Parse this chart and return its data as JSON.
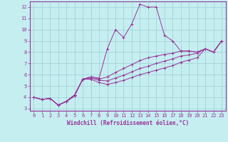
{
  "xlabel": "Windchill (Refroidissement éolien,°C)",
  "bg_color": "#c5eef0",
  "grid_color": "#9dcdd4",
  "line_color": "#993399",
  "xlim": [
    -0.5,
    23.5
  ],
  "ylim": [
    2.8,
    12.5
  ],
  "xticks": [
    0,
    1,
    2,
    3,
    4,
    5,
    6,
    7,
    8,
    9,
    10,
    11,
    12,
    13,
    14,
    15,
    16,
    17,
    18,
    19,
    20,
    21,
    22,
    23
  ],
  "yticks": [
    3,
    4,
    5,
    6,
    7,
    8,
    9,
    10,
    11,
    12
  ],
  "series1": [
    [
      0,
      4.0
    ],
    [
      1,
      3.8
    ],
    [
      2,
      3.9
    ],
    [
      3,
      3.3
    ],
    [
      4,
      3.6
    ],
    [
      5,
      4.1
    ],
    [
      6,
      5.6
    ],
    [
      7,
      5.8
    ],
    [
      8,
      5.7
    ],
    [
      9,
      8.3
    ],
    [
      10,
      10.0
    ],
    [
      11,
      9.3
    ],
    [
      12,
      10.5
    ],
    [
      13,
      12.25
    ],
    [
      14,
      12.0
    ],
    [
      15,
      12.0
    ],
    [
      16,
      9.5
    ],
    [
      17,
      9.0
    ],
    [
      18,
      8.1
    ],
    [
      19,
      8.1
    ],
    [
      20,
      8.0
    ],
    [
      21,
      8.3
    ],
    [
      22,
      8.0
    ],
    [
      23,
      9.0
    ]
  ],
  "series2": [
    [
      0,
      4.0
    ],
    [
      1,
      3.8
    ],
    [
      2,
      3.9
    ],
    [
      3,
      3.3
    ],
    [
      4,
      3.65
    ],
    [
      5,
      4.2
    ],
    [
      6,
      5.6
    ],
    [
      7,
      5.8
    ],
    [
      8,
      5.6
    ],
    [
      9,
      5.8
    ],
    [
      10,
      6.2
    ],
    [
      11,
      6.55
    ],
    [
      12,
      6.9
    ],
    [
      13,
      7.25
    ],
    [
      14,
      7.5
    ],
    [
      15,
      7.65
    ],
    [
      16,
      7.8
    ],
    [
      17,
      7.9
    ],
    [
      18,
      8.1
    ],
    [
      19,
      8.1
    ],
    [
      20,
      8.0
    ],
    [
      21,
      8.3
    ],
    [
      22,
      8.0
    ],
    [
      23,
      9.0
    ]
  ],
  "series3": [
    [
      0,
      4.0
    ],
    [
      1,
      3.8
    ],
    [
      2,
      3.9
    ],
    [
      3,
      3.3
    ],
    [
      4,
      3.65
    ],
    [
      5,
      4.2
    ],
    [
      6,
      5.6
    ],
    [
      7,
      5.7
    ],
    [
      8,
      5.5
    ],
    [
      9,
      5.45
    ],
    [
      10,
      5.7
    ],
    [
      11,
      5.95
    ],
    [
      12,
      6.25
    ],
    [
      13,
      6.55
    ],
    [
      14,
      6.75
    ],
    [
      15,
      7.0
    ],
    [
      16,
      7.2
    ],
    [
      17,
      7.4
    ],
    [
      18,
      7.65
    ],
    [
      19,
      7.75
    ],
    [
      20,
      7.9
    ],
    [
      21,
      8.3
    ],
    [
      22,
      8.0
    ],
    [
      23,
      9.0
    ]
  ],
  "series4": [
    [
      0,
      4.0
    ],
    [
      1,
      3.8
    ],
    [
      2,
      3.9
    ],
    [
      3,
      3.3
    ],
    [
      4,
      3.65
    ],
    [
      5,
      4.2
    ],
    [
      6,
      5.6
    ],
    [
      7,
      5.6
    ],
    [
      8,
      5.3
    ],
    [
      9,
      5.15
    ],
    [
      10,
      5.3
    ],
    [
      11,
      5.5
    ],
    [
      12,
      5.75
    ],
    [
      13,
      6.0
    ],
    [
      14,
      6.2
    ],
    [
      15,
      6.4
    ],
    [
      16,
      6.6
    ],
    [
      17,
      6.8
    ],
    [
      18,
      7.1
    ],
    [
      19,
      7.3
    ],
    [
      20,
      7.5
    ],
    [
      21,
      8.3
    ],
    [
      22,
      8.0
    ],
    [
      23,
      9.0
    ]
  ]
}
